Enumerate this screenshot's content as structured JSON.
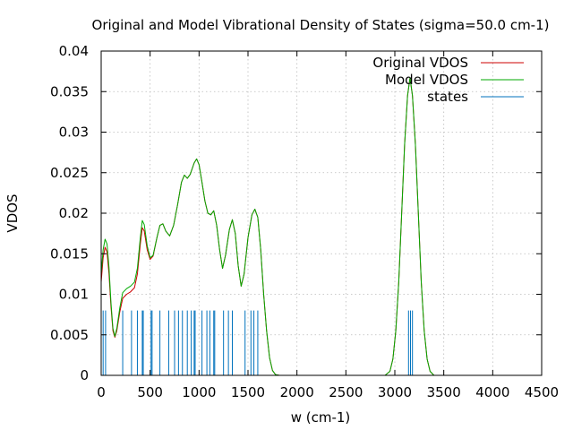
{
  "chart_data": {
    "type": "line",
    "title": "Original and Model Vibrational Density of States (sigma=50.0 cm-1)",
    "xlabel": "w (cm-1)",
    "ylabel": "VDOS",
    "xlim": [
      0,
      4500
    ],
    "ylim": [
      0,
      0.04
    ],
    "xticks": [
      0,
      500,
      1000,
      1500,
      2000,
      2500,
      3000,
      3500,
      4000,
      4500
    ],
    "yticks": [
      0,
      0.005,
      0.01,
      0.015,
      0.02,
      0.025,
      0.03,
      0.035,
      0.04
    ],
    "xtick_labels": [
      "0",
      "500",
      "1000",
      "1500",
      "2000",
      "2500",
      "3000",
      "3500",
      "4000",
      "4500"
    ],
    "ytick_labels": [
      "0",
      "0.005",
      "0.01",
      "0.015",
      "0.02",
      "0.025",
      "0.03",
      "0.035",
      "0.04"
    ],
    "grid": true,
    "legend_position": "top-right",
    "series": [
      {
        "name": "Original VDOS",
        "color": "#cc0000",
        "points": [
          [
            0,
            0.0115
          ],
          [
            20,
            0.0145
          ],
          [
            40,
            0.0158
          ],
          [
            60,
            0.0152
          ],
          [
            80,
            0.0125
          ],
          [
            100,
            0.0085
          ],
          [
            120,
            0.0055
          ],
          [
            140,
            0.0047
          ],
          [
            160,
            0.0055
          ],
          [
            190,
            0.0078
          ],
          [
            220,
            0.0095
          ],
          [
            260,
            0.01
          ],
          [
            300,
            0.0103
          ],
          [
            340,
            0.0108
          ],
          [
            370,
            0.0125
          ],
          [
            400,
            0.0162
          ],
          [
            420,
            0.0182
          ],
          [
            440,
            0.0178
          ],
          [
            470,
            0.0155
          ],
          [
            500,
            0.0143
          ],
          [
            530,
            0.0147
          ],
          [
            570,
            0.017
          ],
          [
            600,
            0.0185
          ],
          [
            630,
            0.0187
          ],
          [
            660,
            0.0178
          ],
          [
            700,
            0.0172
          ],
          [
            740,
            0.0185
          ],
          [
            780,
            0.021
          ],
          [
            820,
            0.0238
          ],
          [
            850,
            0.0247
          ],
          [
            880,
            0.0243
          ],
          [
            910,
            0.0248
          ],
          [
            950,
            0.0262
          ],
          [
            975,
            0.0267
          ],
          [
            1000,
            0.026
          ],
          [
            1030,
            0.0238
          ],
          [
            1060,
            0.0215
          ],
          [
            1090,
            0.02
          ],
          [
            1120,
            0.0198
          ],
          [
            1150,
            0.0203
          ],
          [
            1180,
            0.0185
          ],
          [
            1210,
            0.0155
          ],
          [
            1240,
            0.0132
          ],
          [
            1270,
            0.0148
          ],
          [
            1310,
            0.018
          ],
          [
            1340,
            0.0192
          ],
          [
            1370,
            0.0175
          ],
          [
            1400,
            0.0135
          ],
          [
            1430,
            0.011
          ],
          [
            1460,
            0.0125
          ],
          [
            1500,
            0.017
          ],
          [
            1540,
            0.0198
          ],
          [
            1570,
            0.0205
          ],
          [
            1600,
            0.0195
          ],
          [
            1630,
            0.0155
          ],
          [
            1660,
            0.01
          ],
          [
            1690,
            0.0055
          ],
          [
            1720,
            0.0022
          ],
          [
            1750,
            0.0006
          ],
          [
            1780,
            0.0001
          ],
          [
            1820,
            0
          ],
          [
            2900,
            0
          ],
          [
            2950,
            0.0005
          ],
          [
            2980,
            0.002
          ],
          [
            3010,
            0.0055
          ],
          [
            3040,
            0.0115
          ],
          [
            3070,
            0.02
          ],
          [
            3100,
            0.0285
          ],
          [
            3130,
            0.0345
          ],
          [
            3155,
            0.0367
          ],
          [
            3180,
            0.0345
          ],
          [
            3210,
            0.0285
          ],
          [
            3240,
            0.02
          ],
          [
            3270,
            0.0115
          ],
          [
            3300,
            0.0055
          ],
          [
            3330,
            0.002
          ],
          [
            3360,
            0.0005
          ],
          [
            3400,
            0
          ],
          [
            4500,
            0
          ]
        ]
      },
      {
        "name": "Model VDOS",
        "color": "#00aa00",
        "points": [
          [
            0,
            0.0125
          ],
          [
            20,
            0.0155
          ],
          [
            40,
            0.0168
          ],
          [
            60,
            0.0162
          ],
          [
            80,
            0.0133
          ],
          [
            100,
            0.009
          ],
          [
            120,
            0.0058
          ],
          [
            140,
            0.0048
          ],
          [
            160,
            0.0058
          ],
          [
            190,
            0.0083
          ],
          [
            220,
            0.0102
          ],
          [
            260,
            0.0107
          ],
          [
            300,
            0.011
          ],
          [
            340,
            0.0115
          ],
          [
            370,
            0.0132
          ],
          [
            400,
            0.017
          ],
          [
            420,
            0.0191
          ],
          [
            440,
            0.0186
          ],
          [
            470,
            0.016
          ],
          [
            500,
            0.0145
          ],
          [
            530,
            0.0148
          ],
          [
            570,
            0.017
          ],
          [
            600,
            0.0185
          ],
          [
            630,
            0.0187
          ],
          [
            660,
            0.0178
          ],
          [
            700,
            0.0172
          ],
          [
            740,
            0.0185
          ],
          [
            780,
            0.021
          ],
          [
            820,
            0.0238
          ],
          [
            850,
            0.0247
          ],
          [
            880,
            0.0243
          ],
          [
            910,
            0.0248
          ],
          [
            950,
            0.0262
          ],
          [
            975,
            0.0267
          ],
          [
            1000,
            0.026
          ],
          [
            1030,
            0.0238
          ],
          [
            1060,
            0.0215
          ],
          [
            1090,
            0.02
          ],
          [
            1120,
            0.0198
          ],
          [
            1150,
            0.0203
          ],
          [
            1180,
            0.0185
          ],
          [
            1210,
            0.0155
          ],
          [
            1240,
            0.0132
          ],
          [
            1270,
            0.0148
          ],
          [
            1310,
            0.018
          ],
          [
            1340,
            0.0192
          ],
          [
            1370,
            0.0175
          ],
          [
            1400,
            0.0135
          ],
          [
            1430,
            0.011
          ],
          [
            1460,
            0.0125
          ],
          [
            1500,
            0.017
          ],
          [
            1540,
            0.0198
          ],
          [
            1570,
            0.0205
          ],
          [
            1600,
            0.0195
          ],
          [
            1630,
            0.0155
          ],
          [
            1660,
            0.01
          ],
          [
            1690,
            0.0055
          ],
          [
            1720,
            0.0022
          ],
          [
            1750,
            0.0006
          ],
          [
            1780,
            0.0001
          ],
          [
            1820,
            0
          ],
          [
            2900,
            0
          ],
          [
            2950,
            0.0005
          ],
          [
            2980,
            0.002
          ],
          [
            3010,
            0.0055
          ],
          [
            3040,
            0.0115
          ],
          [
            3070,
            0.02
          ],
          [
            3100,
            0.0285
          ],
          [
            3130,
            0.0345
          ],
          [
            3155,
            0.0367
          ],
          [
            3180,
            0.0345
          ],
          [
            3210,
            0.0285
          ],
          [
            3240,
            0.02
          ],
          [
            3270,
            0.0115
          ],
          [
            3300,
            0.0055
          ],
          [
            3330,
            0.002
          ],
          [
            3360,
            0.0005
          ],
          [
            3400,
            0
          ],
          [
            4500,
            0
          ]
        ]
      },
      {
        "name": "states",
        "color": "#0072bd",
        "impulse_height": 0.008,
        "x": [
          20,
          45,
          220,
          310,
          370,
          420,
          430,
          510,
          520,
          600,
          690,
          750,
          790,
          830,
          880,
          920,
          950,
          960,
          1030,
          1080,
          1110,
          1150,
          1160,
          1250,
          1300,
          1340,
          1470,
          1530,
          1560,
          1600,
          3140,
          3160,
          3180
        ]
      }
    ]
  }
}
